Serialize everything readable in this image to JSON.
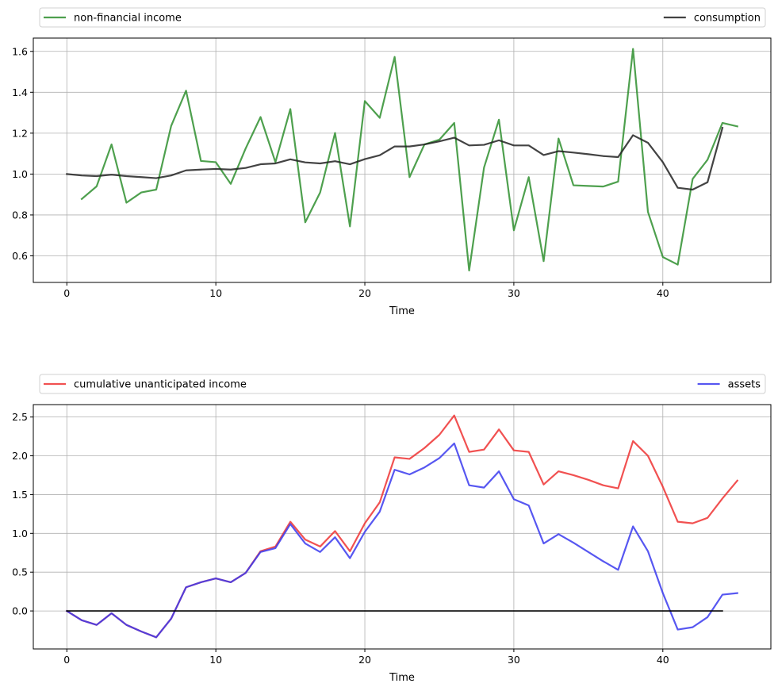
{
  "chart_data": [
    {
      "type": "line",
      "xlabel": "Time",
      "ylabel": "",
      "xlim": [
        -2.25,
        47.25
      ],
      "ylim": [
        0.47,
        1.665
      ],
      "xticks": [
        0,
        10,
        20,
        30,
        40
      ],
      "yticks": [
        0.6,
        0.8,
        1.0,
        1.2,
        1.4,
        1.6
      ],
      "grid": true,
      "legend_placement": "above-plot",
      "series": [
        {
          "name": "non-financial income",
          "color": "#2f8f2f",
          "x": [
            1,
            2,
            3,
            4,
            5,
            6,
            7,
            8,
            9,
            10,
            11,
            12,
            13,
            14,
            15,
            16,
            17,
            18,
            19,
            20,
            21,
            22,
            23,
            24,
            25,
            26,
            27,
            28,
            29,
            30,
            31,
            32,
            33,
            34,
            35,
            36,
            37,
            38,
            39,
            40,
            41,
            42,
            43,
            44,
            45
          ],
          "values": [
            0.878,
            0.94,
            1.145,
            0.86,
            0.91,
            0.924,
            1.235,
            1.408,
            1.064,
            1.058,
            0.952,
            1.125,
            1.279,
            1.058,
            1.318,
            0.764,
            0.91,
            1.201,
            0.744,
            1.357,
            1.275,
            1.573,
            0.985,
            1.145,
            1.168,
            1.25,
            0.528,
            1.032,
            1.266,
            0.725,
            0.985,
            0.574,
            1.174,
            0.945,
            0.942,
            0.939,
            0.963,
            1.612,
            0.815,
            0.594,
            0.557,
            0.976,
            1.07,
            1.25,
            1.233
          ]
        },
        {
          "name": "consumption",
          "color": "#222222",
          "x": [
            0,
            1,
            2,
            3,
            4,
            5,
            6,
            7,
            8,
            9,
            10,
            11,
            12,
            13,
            14,
            15,
            16,
            17,
            18,
            19,
            20,
            21,
            22,
            23,
            24,
            25,
            26,
            27,
            28,
            29,
            30,
            31,
            32,
            33,
            34,
            35,
            36,
            37,
            38,
            39,
            40,
            41,
            42,
            43,
            44
          ],
          "values": [
            1.0,
            0.993,
            0.99,
            0.997,
            0.99,
            0.985,
            0.98,
            0.993,
            1.018,
            1.022,
            1.025,
            1.022,
            1.03,
            1.048,
            1.052,
            1.072,
            1.057,
            1.052,
            1.063,
            1.048,
            1.073,
            1.092,
            1.135,
            1.135,
            1.145,
            1.16,
            1.178,
            1.14,
            1.143,
            1.165,
            1.14,
            1.14,
            1.093,
            1.112,
            1.105,
            1.097,
            1.088,
            1.083,
            1.19,
            1.153,
            1.058,
            0.933,
            0.924,
            0.96,
            1.226
          ]
        }
      ]
    },
    {
      "type": "line",
      "xlabel": "Time",
      "ylabel": "",
      "xlim": [
        -2.25,
        47.25
      ],
      "ylim": [
        -0.49,
        2.66
      ],
      "xticks": [
        0,
        10,
        20,
        30,
        40
      ],
      "yticks": [
        0.0,
        0.5,
        1.0,
        1.5,
        2.0,
        2.5
      ],
      "grid": true,
      "legend_placement": "above-plot",
      "series": [
        {
          "name": "cumulative unanticipated income",
          "color": "#ee3333",
          "x": [
            0,
            1,
            2,
            3,
            4,
            5,
            6,
            7,
            8,
            9,
            10,
            11,
            12,
            13,
            14,
            15,
            16,
            17,
            18,
            19,
            20,
            21,
            22,
            23,
            24,
            25,
            26,
            27,
            28,
            29,
            30,
            31,
            32,
            33,
            34,
            35,
            36,
            37,
            38,
            39,
            40,
            41,
            42,
            43,
            44,
            45
          ],
          "values": [
            0.0,
            -0.12,
            -0.18,
            -0.03,
            -0.18,
            -0.265,
            -0.34,
            -0.1,
            0.305,
            0.37,
            0.42,
            0.37,
            0.49,
            0.77,
            0.83,
            1.15,
            0.92,
            0.83,
            1.03,
            0.77,
            1.13,
            1.4,
            1.98,
            1.96,
            2.1,
            2.27,
            2.52,
            2.05,
            2.08,
            2.34,
            2.07,
            2.05,
            1.63,
            1.8,
            1.75,
            1.69,
            1.62,
            1.58,
            2.19,
            2.0,
            1.6,
            1.15,
            1.13,
            1.2,
            1.45,
            1.68
          ]
        },
        {
          "name": "assets",
          "color": "#3a3aee",
          "x": [
            0,
            1,
            2,
            3,
            4,
            5,
            6,
            7,
            8,
            9,
            10,
            11,
            12,
            13,
            14,
            15,
            16,
            17,
            18,
            19,
            20,
            21,
            22,
            23,
            24,
            25,
            26,
            27,
            28,
            29,
            30,
            31,
            32,
            33,
            34,
            35,
            36,
            37,
            38,
            39,
            40,
            41,
            42,
            43,
            44,
            45
          ],
          "values": [
            0.0,
            -0.12,
            -0.18,
            -0.03,
            -0.18,
            -0.265,
            -0.34,
            -0.1,
            0.305,
            0.37,
            0.42,
            0.37,
            0.49,
            0.76,
            0.81,
            1.12,
            0.87,
            0.76,
            0.95,
            0.68,
            1.02,
            1.28,
            1.82,
            1.76,
            1.85,
            1.97,
            2.16,
            1.62,
            1.59,
            1.8,
            1.44,
            1.36,
            0.87,
            0.99,
            0.88,
            0.76,
            0.64,
            0.53,
            1.09,
            0.77,
            0.23,
            -0.24,
            -0.21,
            -0.08,
            0.21,
            0.23
          ]
        },
        {
          "name": "",
          "color": "#000000",
          "x": [
            0,
            44
          ],
          "values": [
            0.0,
            0.0
          ]
        }
      ]
    }
  ]
}
